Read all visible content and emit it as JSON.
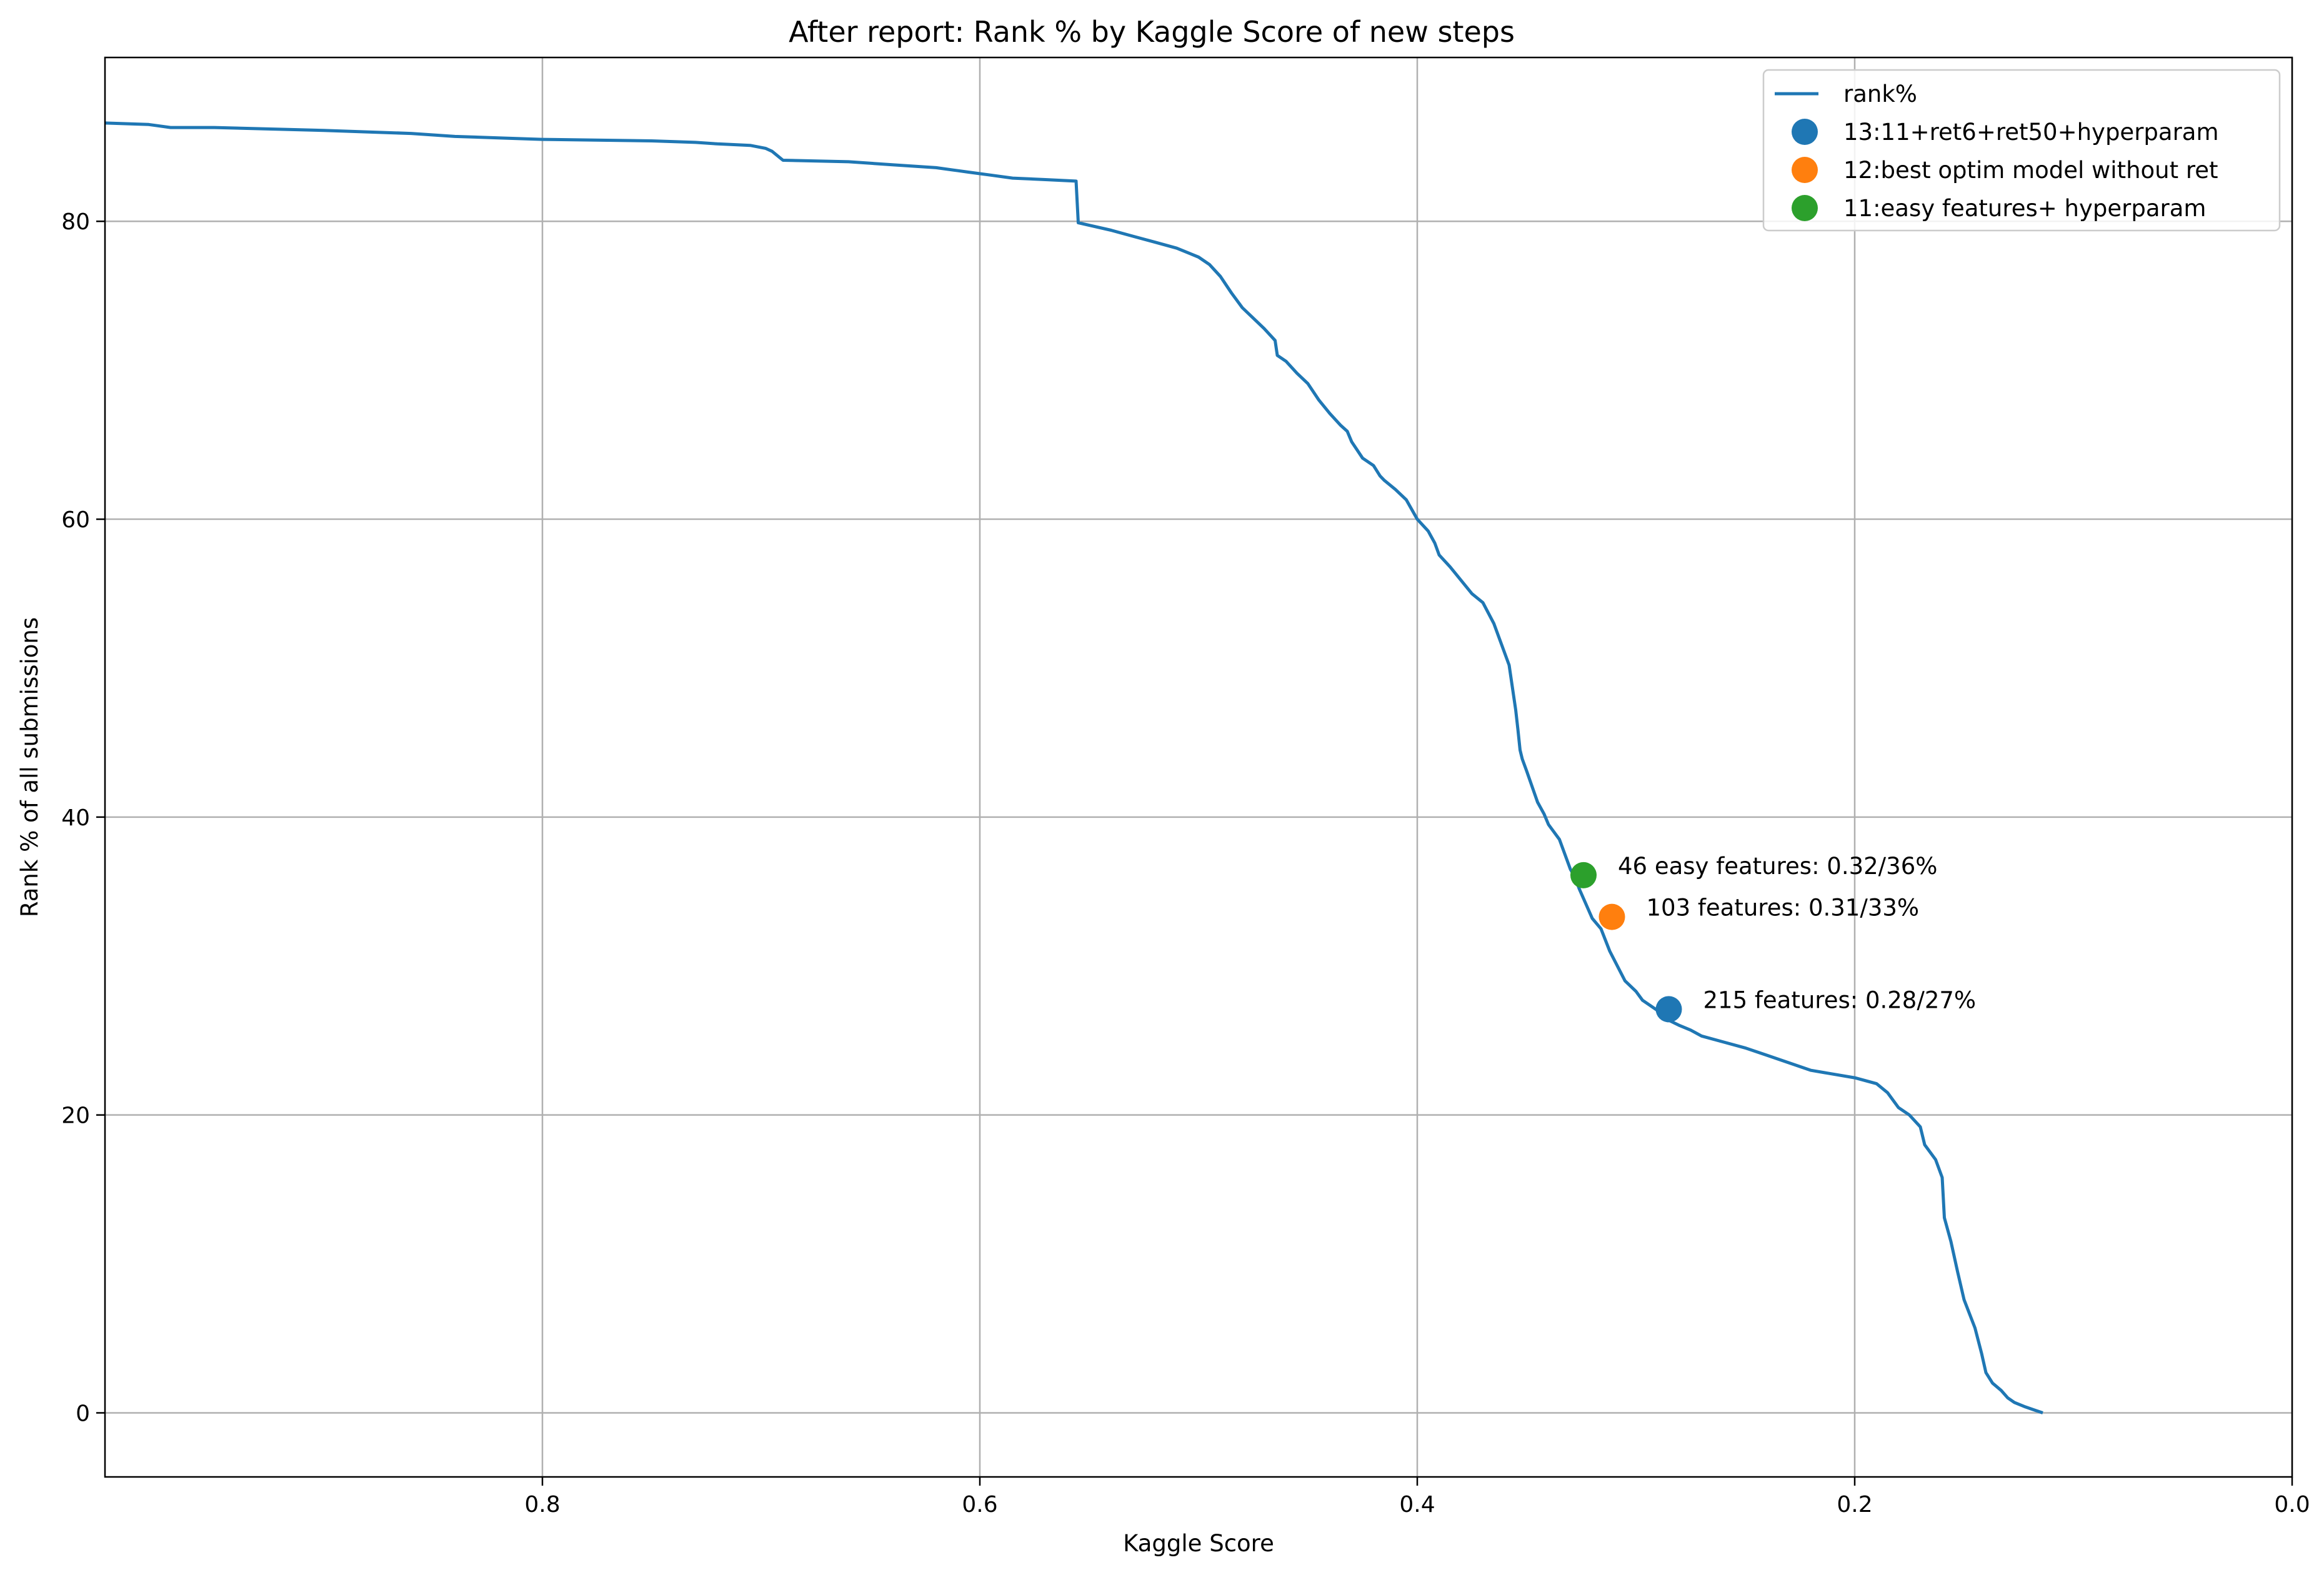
{
  "chart_data": {
    "type": "line",
    "title": "After report: Rank % by Kaggle Score of new steps",
    "xlabel": "Kaggle Score",
    "ylabel": "Rank % of all submissions",
    "xlim": [
      1.0,
      0.0
    ],
    "ylim": [
      -4.3,
      91
    ],
    "x_inverted": true,
    "grid": true,
    "x_ticks": [
      0.8,
      0.6,
      0.4,
      0.2,
      0.0
    ],
    "x_tick_labels": [
      "0.8",
      "0.6",
      "0.4",
      "0.2",
      "0.0"
    ],
    "y_ticks": [
      0,
      20,
      40,
      60,
      80
    ],
    "y_tick_labels": [
      "0",
      "20",
      "40",
      "60",
      "80"
    ],
    "legend_position": "top-right",
    "series": [
      {
        "name": "rank%",
        "kind": "line",
        "color": "#1f77b4",
        "x": [
          1.0,
          0.98,
          0.97,
          0.95,
          0.9,
          0.86,
          0.85,
          0.84,
          0.82,
          0.8,
          0.75,
          0.73,
          0.72,
          0.705,
          0.698,
          0.695,
          0.69,
          0.66,
          0.64,
          0.62,
          0.61,
          0.605,
          0.595,
          0.585,
          0.57,
          0.556,
          0.555,
          0.54,
          0.53,
          0.52,
          0.51,
          0.5,
          0.495,
          0.49,
          0.485,
          0.48,
          0.475,
          0.47,
          0.465,
          0.464,
          0.46,
          0.455,
          0.45,
          0.445,
          0.44,
          0.435,
          0.432,
          0.43,
          0.425,
          0.42,
          0.417,
          0.415,
          0.41,
          0.405,
          0.4,
          0.395,
          0.392,
          0.39,
          0.385,
          0.38,
          0.375,
          0.37,
          0.365,
          0.362,
          0.358,
          0.355,
          0.354,
          0.353,
          0.352,
          0.35,
          0.345,
          0.342,
          0.34,
          0.335,
          0.33,
          0.328,
          0.326,
          0.32,
          0.316,
          0.312,
          0.305,
          0.3,
          0.297,
          0.29,
          0.287,
          0.28,
          0.275,
          0.27,
          0.26,
          0.25,
          0.24,
          0.23,
          0.22,
          0.2,
          0.19,
          0.185,
          0.18,
          0.175,
          0.17,
          0.168,
          0.163,
          0.16,
          0.159,
          0.156,
          0.153,
          0.15,
          0.145,
          0.142,
          0.14,
          0.137,
          0.133,
          0.13,
          0.127,
          0.122,
          0.118,
          0.114
        ],
        "y": [
          86.6,
          86.5,
          86.3,
          86.3,
          86.1,
          85.9,
          85.8,
          85.7,
          85.6,
          85.5,
          85.4,
          85.3,
          85.2,
          85.1,
          84.9,
          84.7,
          84.1,
          84.0,
          83.8,
          83.6,
          83.4,
          83.3,
          83.1,
          82.9,
          82.8,
          82.7,
          79.9,
          79.4,
          79.0,
          78.6,
          78.2,
          77.6,
          77.1,
          76.3,
          75.2,
          74.2,
          73.5,
          72.8,
          72.0,
          71.0,
          70.6,
          69.8,
          69.1,
          68.0,
          67.1,
          66.3,
          65.9,
          65.2,
          64.1,
          63.6,
          62.9,
          62.6,
          62.0,
          61.3,
          60.0,
          59.2,
          58.4,
          57.6,
          56.8,
          55.9,
          55.0,
          54.4,
          53.0,
          51.8,
          50.2,
          47.2,
          45.9,
          44.5,
          43.9,
          43.1,
          41.0,
          40.2,
          39.5,
          38.5,
          36.5,
          36.0,
          35.2,
          33.2,
          32.5,
          31.0,
          29.0,
          28.3,
          27.7,
          27.0,
          26.5,
          26.0,
          25.7,
          25.3,
          24.9,
          24.5,
          24.0,
          23.5,
          23.0,
          22.5,
          22.1,
          21.5,
          20.5,
          20.0,
          19.2,
          18.0,
          17.0,
          15.8,
          13.1,
          11.5,
          9.5,
          7.6,
          5.7,
          4.0,
          2.7,
          2.0,
          1.5,
          1.0,
          0.7,
          0.4,
          0.2,
          0.0
        ]
      },
      {
        "name": "13:11+ret6+ret50+hyperparam",
        "kind": "scatter",
        "color": "#1f77b4",
        "x": [
          0.285
        ],
        "y": [
          27.1
        ],
        "annotation": "215 features: 0.28/27%"
      },
      {
        "name": "12:best optim model without ret",
        "kind": "scatter",
        "color": "#ff7f0e",
        "x": [
          0.311
        ],
        "y": [
          33.3
        ],
        "annotation": "103 features: 0.31/33%"
      },
      {
        "name": "11:easy features+ hyperparam",
        "kind": "scatter",
        "color": "#2ca02c",
        "x": [
          0.324
        ],
        "y": [
          36.1
        ],
        "annotation": "46 easy features: 0.32/36%"
      }
    ]
  }
}
